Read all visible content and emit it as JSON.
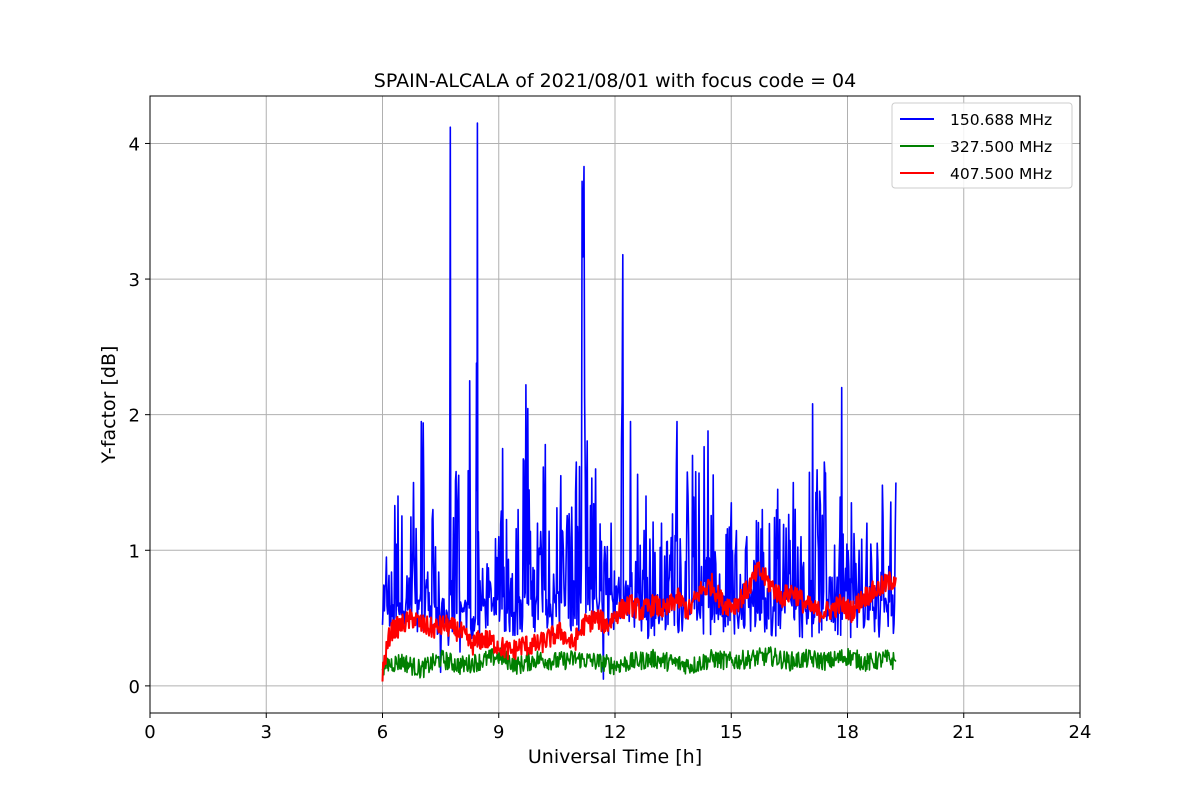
{
  "chart_data": {
    "type": "line",
    "title": "SPAIN-ALCALA of 2021/08/01 with focus code = 04",
    "xlabel": "Universal Time [h]",
    "ylabel": "Y-factor [dB]",
    "xlim": [
      0,
      24
    ],
    "ylim": [
      -0.2,
      4.35
    ],
    "xticks": [
      0,
      3,
      6,
      9,
      12,
      15,
      18,
      21,
      24
    ],
    "xtick_labels": [
      "0",
      "3",
      "6",
      "9",
      "12",
      "15",
      "18",
      "21",
      "24"
    ],
    "yticks": [
      0,
      1,
      2,
      3,
      4
    ],
    "ytick_labels": [
      "0",
      "1",
      "2",
      "3",
      "4"
    ],
    "grid": true,
    "legend_position": "top-right",
    "series": [
      {
        "name": "150.688 MHz",
        "color": "#0000ff",
        "x": [
          6.0,
          6.1,
          6.3,
          6.4,
          6.6,
          6.8,
          6.9,
          7.0,
          7.1,
          7.3,
          7.5,
          7.6,
          7.7,
          7.75,
          7.8,
          7.9,
          8.0,
          8.2,
          8.25,
          8.3,
          8.4,
          8.45,
          8.5,
          8.7,
          8.9,
          9.0,
          9.1,
          9.3,
          9.5,
          9.6,
          9.7,
          9.8,
          10.0,
          10.2,
          10.4,
          10.6,
          10.8,
          11.0,
          11.1,
          11.2,
          11.3,
          11.5,
          11.7,
          11.9,
          12.0,
          12.1,
          12.2,
          12.3,
          12.4,
          12.6,
          12.8,
          13.0,
          13.2,
          13.4,
          13.6,
          13.8,
          14.0,
          14.2,
          14.4,
          14.6,
          14.8,
          15.0,
          15.2,
          15.4,
          15.6,
          15.8,
          16.0,
          16.2,
          16.4,
          16.6,
          16.8,
          17.0,
          17.1,
          17.2,
          17.4,
          17.6,
          17.8,
          17.85,
          17.9,
          18.1,
          18.3,
          18.5,
          18.7,
          18.9,
          19.1,
          19.25
        ],
        "y": [
          0.45,
          0.95,
          0.5,
          1.4,
          0.6,
          1.5,
          0.4,
          1.95,
          0.55,
          1.3,
          0.1,
          0.5,
          0.3,
          4.12,
          0.4,
          1.58,
          0.25,
          0.6,
          2.25,
          0.35,
          0.5,
          4.15,
          0.3,
          0.9,
          0.55,
          1.1,
          1.75,
          0.7,
          1.3,
          0.4,
          2.22,
          0.9,
          1.2,
          1.78,
          0.6,
          1.55,
          0.5,
          1.65,
          0.8,
          3.83,
          0.6,
          1.6,
          0.05,
          1.2,
          0.5,
          0.8,
          3.18,
          0.6,
          1.95,
          0.7,
          1.4,
          0.6,
          1.2,
          0.8,
          1.95,
          0.6,
          1.7,
          0.5,
          1.88,
          0.9,
          0.4,
          1.35,
          0.5,
          1.1,
          0.9,
          1.3,
          0.7,
          1.45,
          0.8,
          1.5,
          1.1,
          0.6,
          2.08,
          1.3,
          1.65,
          0.8,
          1.1,
          2.2,
          0.6,
          1.35,
          1.0,
          1.2,
          0.4,
          1.48,
          1.0,
          1.5
        ]
      },
      {
        "name": "327.500 MHz",
        "color": "#008000",
        "x": [
          6.0,
          6.5,
          7.0,
          7.5,
          8.0,
          8.5,
          9.0,
          9.5,
          10.0,
          10.5,
          11.0,
          11.5,
          12.0,
          12.5,
          13.0,
          13.5,
          14.0,
          14.5,
          15.0,
          15.5,
          16.0,
          16.5,
          17.0,
          17.5,
          18.0,
          18.5,
          19.0,
          19.25
        ],
        "y": [
          0.15,
          0.18,
          0.12,
          0.2,
          0.15,
          0.18,
          0.22,
          0.15,
          0.2,
          0.18,
          0.2,
          0.18,
          0.15,
          0.18,
          0.2,
          0.17,
          0.15,
          0.2,
          0.18,
          0.2,
          0.22,
          0.18,
          0.2,
          0.18,
          0.22,
          0.17,
          0.2,
          0.18
        ]
      },
      {
        "name": "407.500 MHz",
        "color": "#ff0000",
        "x": [
          6.0,
          6.2,
          6.5,
          6.8,
          7.0,
          7.3,
          7.6,
          8.0,
          8.3,
          8.6,
          9.0,
          9.3,
          9.6,
          10.0,
          10.3,
          10.6,
          10.9,
          11.2,
          11.5,
          11.8,
          12.1,
          12.4,
          12.7,
          13.0,
          13.3,
          13.6,
          13.9,
          14.2,
          14.5,
          14.8,
          15.1,
          15.4,
          15.7,
          16.0,
          16.3,
          16.6,
          16.9,
          17.2,
          17.5,
          17.8,
          18.1,
          18.4,
          18.7,
          19.0,
          19.25
        ],
        "y": [
          0.1,
          0.4,
          0.45,
          0.5,
          0.45,
          0.42,
          0.45,
          0.4,
          0.3,
          0.35,
          0.3,
          0.25,
          0.3,
          0.3,
          0.35,
          0.4,
          0.3,
          0.45,
          0.5,
          0.45,
          0.55,
          0.6,
          0.55,
          0.6,
          0.55,
          0.65,
          0.55,
          0.7,
          0.75,
          0.6,
          0.6,
          0.7,
          0.85,
          0.75,
          0.65,
          0.7,
          0.6,
          0.55,
          0.55,
          0.6,
          0.55,
          0.65,
          0.7,
          0.75,
          0.8
        ]
      }
    ]
  }
}
